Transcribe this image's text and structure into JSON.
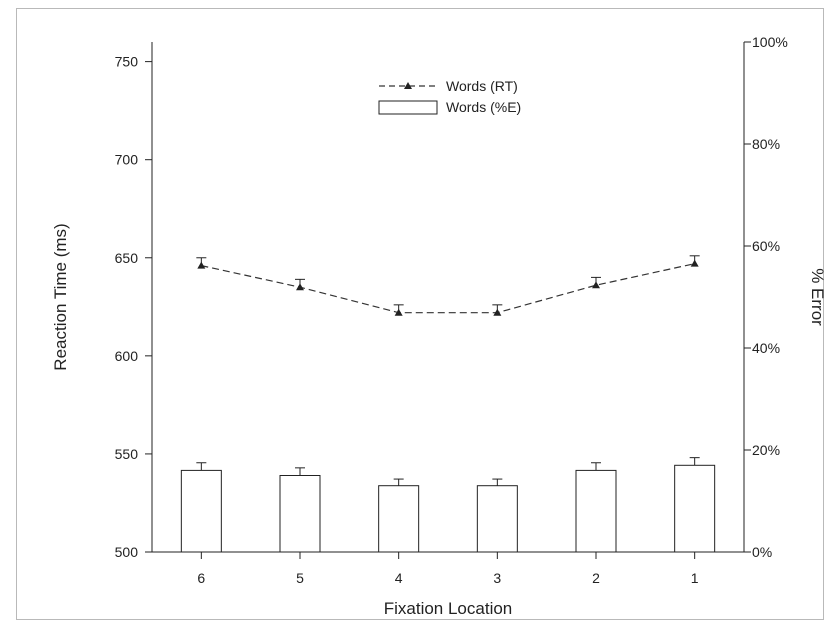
{
  "chart_data": {
    "type": "bar",
    "categories": [
      "6",
      "5",
      "4",
      "3",
      "2",
      "1"
    ],
    "xlabel": "Fixation Location",
    "ylabel": "Reaction Time (ms)",
    "y2label": "% Error",
    "ylim": [
      500,
      760
    ],
    "y2lim": [
      0,
      100
    ],
    "yticks": [
      "500",
      "550",
      "600",
      "650",
      "700",
      "750"
    ],
    "y2ticks": [
      "0%",
      "20%",
      "40%",
      "60%",
      "80%",
      "100%"
    ],
    "legend_position": "top-center",
    "series": [
      {
        "name": "Words (RT)",
        "kind": "line",
        "axis": "left",
        "values": [
          646,
          635,
          622,
          622,
          636,
          647
        ],
        "error": [
          4,
          4,
          4,
          4,
          4,
          4
        ],
        "color": "#333333"
      },
      {
        "name": "Words (%E)",
        "kind": "bar",
        "axis": "right",
        "values": [
          16,
          15,
          13,
          13,
          16,
          17
        ],
        "error": [
          1.5,
          1.5,
          1.3,
          1.3,
          1.5,
          1.5
        ],
        "color": "#ffffff"
      }
    ]
  }
}
